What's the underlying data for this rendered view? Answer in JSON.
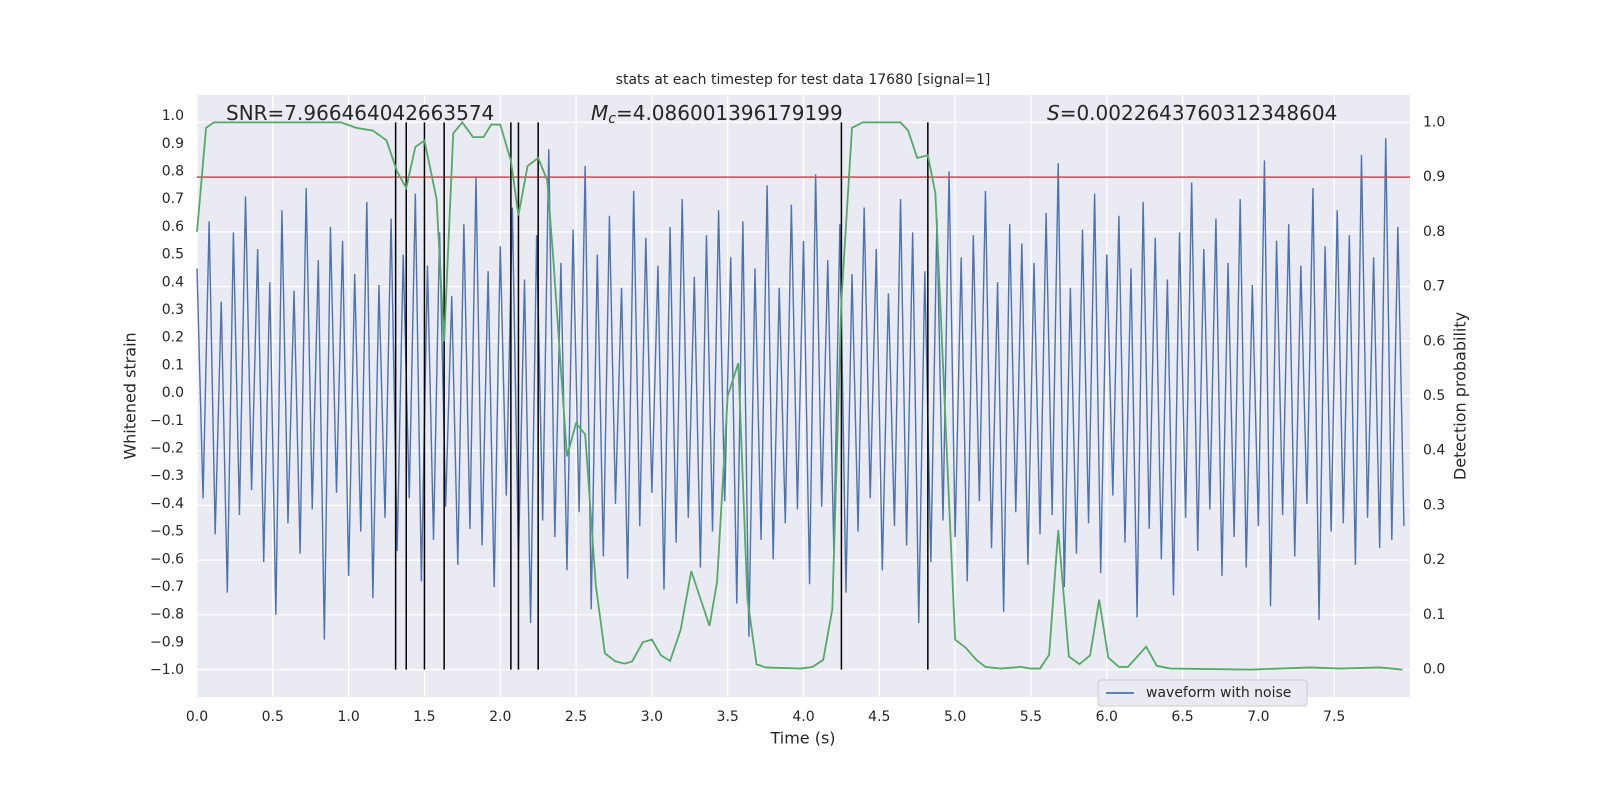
{
  "chart_data": {
    "type": "line",
    "title": "stats at each timestep for test data 17680 [signal=1]",
    "xlabel": "Time (s)",
    "ylabel": "Whitened strain",
    "y2label": "Detection probability",
    "annotations": [
      {
        "text": "SNR=7.966464042663574"
      },
      {
        "symbol": "M",
        "sub": "c",
        "text": "=4.086001396179199"
      },
      {
        "symbol": "S",
        "text": "=0.0022643760312348604"
      }
    ],
    "xlim": [
      0,
      8
    ],
    "ylim": [
      -1.097,
      1.076
    ],
    "y2lim": [
      -0.05,
      1.05
    ],
    "xticks": [
      {
        "value": 0,
        "label": "0.0"
      },
      {
        "value": 0.5,
        "label": "0.5"
      },
      {
        "value": 1,
        "label": "1.0"
      },
      {
        "value": 1.5,
        "label": "1.5"
      },
      {
        "value": 2,
        "label": "2.0"
      },
      {
        "value": 2.5,
        "label": "2.5"
      },
      {
        "value": 3,
        "label": "3.0"
      },
      {
        "value": 3.5,
        "label": "3.5"
      },
      {
        "value": 4,
        "label": "4.0"
      },
      {
        "value": 4.5,
        "label": "4.5"
      },
      {
        "value": 5,
        "label": "5.0"
      },
      {
        "value": 5.5,
        "label": "5.5"
      },
      {
        "value": 6,
        "label": "6.0"
      },
      {
        "value": 6.5,
        "label": "6.5"
      },
      {
        "value": 7,
        "label": "7.0"
      },
      {
        "value": 7.5,
        "label": "7.5"
      }
    ],
    "yticks": [
      {
        "value": -1,
        "label": "−1.0"
      },
      {
        "value": -0.9,
        "label": "−0.9"
      },
      {
        "value": -0.8,
        "label": "−0.8"
      },
      {
        "value": -0.7,
        "label": "−0.7"
      },
      {
        "value": -0.6,
        "label": "−0.6"
      },
      {
        "value": -0.5,
        "label": "−0.5"
      },
      {
        "value": -0.4,
        "label": "−0.4"
      },
      {
        "value": -0.3,
        "label": "−0.3"
      },
      {
        "value": -0.2,
        "label": "−0.2"
      },
      {
        "value": -0.1,
        "label": "−0.1"
      },
      {
        "value": 0,
        "label": "0.0"
      },
      {
        "value": 0.1,
        "label": "0.1"
      },
      {
        "value": 0.2,
        "label": "0.2"
      },
      {
        "value": 0.3,
        "label": "0.3"
      },
      {
        "value": 0.4,
        "label": "0.4"
      },
      {
        "value": 0.5,
        "label": "0.5"
      },
      {
        "value": 0.6,
        "label": "0.6"
      },
      {
        "value": 0.7,
        "label": "0.7"
      },
      {
        "value": 0.8,
        "label": "0.8"
      },
      {
        "value": 0.9,
        "label": "0.9"
      },
      {
        "value": 1,
        "label": "1.0"
      }
    ],
    "y2ticks": [
      {
        "value": 0,
        "label": "0.0"
      },
      {
        "value": 0.1,
        "label": "0.1"
      },
      {
        "value": 0.2,
        "label": "0.2"
      },
      {
        "value": 0.3,
        "label": "0.3"
      },
      {
        "value": 0.4,
        "label": "0.4"
      },
      {
        "value": 0.5,
        "label": "0.5"
      },
      {
        "value": 0.6,
        "label": "0.6"
      },
      {
        "value": 0.7,
        "label": "0.7"
      },
      {
        "value": 0.8,
        "label": "0.8"
      },
      {
        "value": 0.9,
        "label": "0.9"
      },
      {
        "value": 1,
        "label": "1.0"
      }
    ],
    "grid": true,
    "legend": "lower right",
    "series": [
      {
        "name": "waveform with noise",
        "color": "#4c72b0",
        "x": [
          0,
          0.04,
          0.08,
          0.12,
          0.16,
          0.2,
          0.24,
          0.28,
          0.32,
          0.36,
          0.4,
          0.44,
          0.48,
          0.52,
          0.56,
          0.6,
          0.64,
          0.68,
          0.72,
          0.76,
          0.8,
          0.84,
          0.88,
          0.92,
          0.96,
          1,
          1.04,
          1.08,
          1.12,
          1.16,
          1.2,
          1.24,
          1.28,
          1.32,
          1.36,
          1.4,
          1.44,
          1.48,
          1.52,
          1.56,
          1.6,
          1.64,
          1.68,
          1.72,
          1.76,
          1.8,
          1.84,
          1.88,
          1.92,
          1.96,
          2,
          2.04,
          2.08,
          2.12,
          2.16,
          2.2,
          2.24,
          2.28,
          2.32,
          2.36,
          2.4,
          2.44,
          2.48,
          2.52,
          2.56,
          2.6,
          2.64,
          2.68,
          2.72,
          2.76,
          2.8,
          2.84,
          2.88,
          2.92,
          2.96,
          3,
          3.04,
          3.08,
          3.12,
          3.16,
          3.2,
          3.24,
          3.28,
          3.32,
          3.36,
          3.4,
          3.44,
          3.48,
          3.52,
          3.56,
          3.6,
          3.64,
          3.68,
          3.72,
          3.76,
          3.8,
          3.84,
          3.88,
          3.92,
          3.96,
          4,
          4.04,
          4.08,
          4.12,
          4.16,
          4.2,
          4.24,
          4.28,
          4.32,
          4.36,
          4.4,
          4.44,
          4.48,
          4.52,
          4.56,
          4.6,
          4.64,
          4.68,
          4.72,
          4.76,
          4.8,
          4.84,
          4.88,
          4.92,
          4.96,
          5,
          5.04,
          5.08,
          5.12,
          5.16,
          5.2,
          5.24,
          5.28,
          5.32,
          5.36,
          5.4,
          5.44,
          5.48,
          5.52,
          5.56,
          5.6,
          5.64,
          5.68,
          5.72,
          5.76,
          5.8,
          5.84,
          5.88,
          5.92,
          5.96,
          6,
          6.04,
          6.08,
          6.12,
          6.16,
          6.2,
          6.24,
          6.28,
          6.32,
          6.36,
          6.4,
          6.44,
          6.48,
          6.52,
          6.56,
          6.6,
          6.64,
          6.68,
          6.72,
          6.76,
          6.8,
          6.84,
          6.88,
          6.92,
          6.96,
          7,
          7.04,
          7.08,
          7.12,
          7.16,
          7.2,
          7.24,
          7.28,
          7.32,
          7.36,
          7.4,
          7.44,
          7.48,
          7.52,
          7.56,
          7.6,
          7.64,
          7.68,
          7.72,
          7.76,
          7.8,
          7.84,
          7.88,
          7.92,
          7.96
        ],
        "values": [
          0.45,
          -0.38,
          0.62,
          -0.51,
          0.33,
          -0.72,
          0.58,
          -0.44,
          0.71,
          -0.35,
          0.52,
          -0.61,
          0.4,
          -0.8,
          0.66,
          -0.47,
          0.37,
          -0.58,
          0.74,
          -0.42,
          0.48,
          -0.89,
          0.6,
          -0.36,
          0.55,
          -0.66,
          0.43,
          -0.5,
          0.69,
          -0.74,
          0.39,
          -0.45,
          0.63,
          -0.57,
          0.5,
          -0.38,
          0.72,
          -0.68,
          0.46,
          -0.53,
          0.58,
          -0.41,
          0.35,
          -0.62,
          0.61,
          -0.49,
          0.78,
          -0.55,
          0.44,
          -0.7,
          0.53,
          -0.37,
          0.67,
          -0.6,
          0.41,
          -0.83,
          0.57,
          -0.46,
          0.88,
          -0.52,
          0.47,
          -0.64,
          0.59,
          -0.43,
          0.82,
          -0.78,
          0.5,
          -0.59,
          0.64,
          -0.4,
          0.38,
          -0.67,
          0.73,
          -0.48,
          0.56,
          -0.36,
          0.46,
          -0.71,
          0.6,
          -0.54,
          0.7,
          -0.45,
          0.42,
          -0.63,
          0.57,
          -0.5,
          0.66,
          -0.39,
          0.49,
          -0.76,
          0.62,
          -0.88,
          0.45,
          -0.53,
          0.75,
          -0.6,
          0.38,
          -0.47,
          0.68,
          -0.42,
          0.55,
          -0.69,
          0.79,
          -0.41,
          0.48,
          -0.57,
          0.61,
          -0.72,
          0.43,
          -0.5,
          0.67,
          -0.38,
          0.52,
          -0.64,
          0.36,
          -0.48,
          0.7,
          -0.55,
          0.58,
          -0.83,
          0.44,
          -0.61,
          0.63,
          -0.46,
          0.8,
          -0.52,
          0.49,
          -0.68,
          0.57,
          -0.39,
          0.73,
          -0.56,
          0.4,
          -0.79,
          0.61,
          -0.43,
          0.54,
          -0.62,
          0.47,
          -0.51,
          0.65,
          -0.44,
          0.83,
          -0.7,
          0.38,
          -0.58,
          0.59,
          -0.47,
          0.72,
          -0.65,
          0.5,
          -0.37,
          0.64,
          -0.54,
          0.45,
          -0.81,
          0.69,
          -0.49,
          0.56,
          -0.6,
          0.41,
          -0.73,
          0.58,
          -0.45,
          0.76,
          -0.57,
          0.52,
          -0.42,
          0.63,
          -0.66,
          0.47,
          -0.52,
          0.7,
          -0.63,
          0.39,
          -0.48,
          0.84,
          -0.77,
          0.55,
          -0.44,
          0.61,
          -0.59,
          0.46,
          -0.4,
          0.74,
          -0.82,
          0.53,
          -0.5,
          0.66,
          -0.47,
          0.57,
          -0.62,
          0.86,
          -0.45,
          0.49,
          -0.56,
          0.92,
          -0.53,
          0.6,
          -0.48
        ]
      }
    ],
    "probability": {
      "color": "#55a868",
      "axis": "y2",
      "x": [
        0.0,
        0.06,
        0.11,
        0.95,
        1.05,
        1.16,
        1.25,
        1.32,
        1.38,
        1.44,
        1.5,
        1.58,
        1.63,
        1.69,
        1.75,
        1.82,
        1.89,
        1.94,
        2.0,
        2.07,
        2.12,
        2.18,
        2.25,
        2.31,
        2.35,
        2.44,
        2.5,
        2.56,
        2.63,
        2.69,
        2.76,
        2.82,
        2.87,
        2.94,
        3.0,
        3.06,
        3.12,
        3.19,
        3.26,
        3.32,
        3.38,
        3.43,
        3.5,
        3.57,
        3.63,
        3.69,
        3.75,
        3.98,
        4.06,
        4.13,
        4.19,
        4.25,
        4.32,
        4.39,
        4.64,
        4.69,
        4.75,
        4.82,
        4.87,
        5.0,
        5.07,
        5.14,
        5.2,
        5.3,
        5.43,
        5.5,
        5.56,
        5.62,
        5.68,
        5.75,
        5.82,
        5.89,
        5.95,
        6.01,
        6.08,
        6.14,
        6.26,
        6.33,
        6.42,
        6.95,
        7.34,
        7.54,
        7.8,
        7.95
      ],
      "values": [
        0.8,
        0.99,
        1.0,
        1.0,
        0.99,
        0.985,
        0.967,
        0.91,
        0.88,
        0.955,
        0.967,
        0.86,
        0.6,
        0.98,
        1.0,
        0.973,
        0.973,
        0.996,
        0.996,
        0.93,
        0.83,
        0.92,
        0.935,
        0.894,
        0.75,
        0.39,
        0.45,
        0.43,
        0.155,
        0.03,
        0.015,
        0.011,
        0.015,
        0.05,
        0.055,
        0.026,
        0.016,
        0.073,
        0.18,
        0.13,
        0.08,
        0.16,
        0.5,
        0.56,
        0.13,
        0.01,
        0.004,
        0.002,
        0.005,
        0.018,
        0.11,
        0.675,
        0.99,
        1.0,
        1.0,
        0.985,
        0.935,
        0.94,
        0.87,
        0.055,
        0.04,
        0.018,
        0.005,
        0.002,
        0.005,
        0.002,
        0.002,
        0.027,
        0.255,
        0.024,
        0.01,
        0.026,
        0.128,
        0.022,
        0.005,
        0.005,
        0.042,
        0.007,
        0.002,
        0.0,
        0.004,
        0.002,
        0.004,
        0.0
      ]
    },
    "threshold": {
      "value": 0.9,
      "axis": "y2",
      "color": "#c44e52"
    },
    "vlines": {
      "x": [
        1.31,
        1.38,
        1.5,
        1.63,
        2.07,
        2.12,
        2.25,
        4.25,
        4.82
      ],
      "color": "#000000"
    }
  }
}
